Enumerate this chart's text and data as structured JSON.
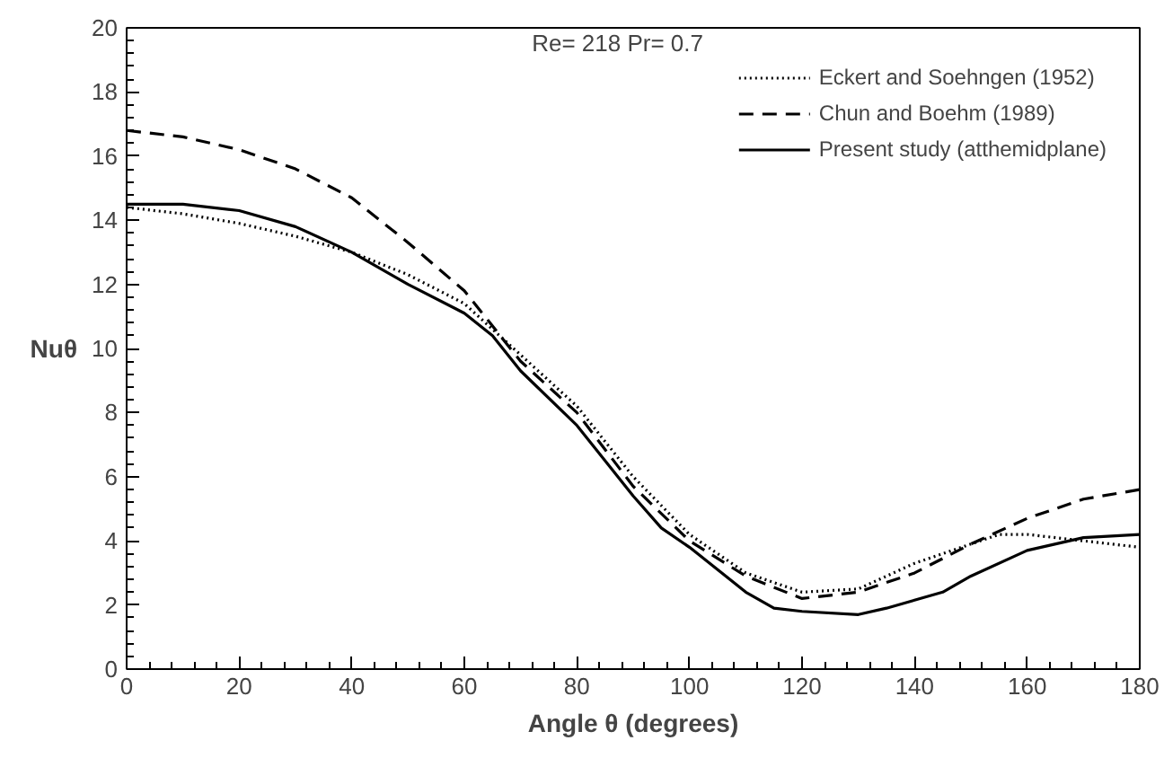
{
  "chart_data": {
    "type": "line",
    "xlabel": "Angle θ (degrees)",
    "ylabel": "Nuθ",
    "annotations": [
      "Re= 218   Pr= 0.7"
    ],
    "xlim": [
      0,
      180
    ],
    "ylim": [
      0,
      20
    ],
    "xticks": [
      0,
      20,
      40,
      60,
      80,
      100,
      120,
      140,
      160,
      180
    ],
    "yticks": [
      0,
      2,
      4,
      6,
      8,
      10,
      12,
      14,
      16,
      18,
      20
    ],
    "grid": false,
    "legend": "top right",
    "marker": "none",
    "series": [
      {
        "name": "Eckert and Soehngen (1952)",
        "color": "#000000",
        "line_style": "dotted",
        "x": [
          0,
          10,
          20,
          30,
          40,
          50,
          60,
          70,
          80,
          90,
          100,
          110,
          120,
          130,
          140,
          150,
          155,
          160,
          170,
          180
        ],
        "values": [
          14.4,
          14.2,
          13.9,
          13.5,
          13.0,
          12.3,
          11.4,
          9.8,
          8.2,
          6.0,
          4.2,
          3.0,
          2.4,
          2.5,
          3.3,
          3.9,
          4.2,
          4.2,
          4.0,
          3.8
        ]
      },
      {
        "name": "Chun and Boehm (1989)",
        "color": "#000000",
        "line_style": "dashed",
        "x": [
          0,
          10,
          20,
          30,
          40,
          50,
          60,
          70,
          80,
          90,
          100,
          110,
          120,
          130,
          140,
          150,
          160,
          170,
          180
        ],
        "values": [
          16.8,
          16.6,
          16.2,
          15.6,
          14.7,
          13.3,
          11.8,
          9.6,
          8.0,
          5.7,
          4.0,
          2.9,
          2.2,
          2.4,
          3.0,
          3.9,
          4.7,
          5.3,
          5.6
        ]
      },
      {
        "name": "Present study (atthemidplane)",
        "color": "#000000",
        "line_style": "solid",
        "x": [
          0,
          10,
          20,
          30,
          40,
          50,
          60,
          65,
          70,
          80,
          90,
          95,
          100,
          110,
          115,
          120,
          130,
          135,
          145,
          150,
          160,
          170,
          180
        ],
        "values": [
          14.5,
          14.5,
          14.3,
          13.8,
          13.0,
          12.0,
          11.1,
          10.4,
          9.3,
          7.6,
          5.4,
          4.4,
          3.8,
          2.4,
          1.9,
          1.8,
          1.7,
          1.9,
          2.4,
          2.9,
          3.7,
          4.1,
          4.2
        ]
      }
    ]
  }
}
